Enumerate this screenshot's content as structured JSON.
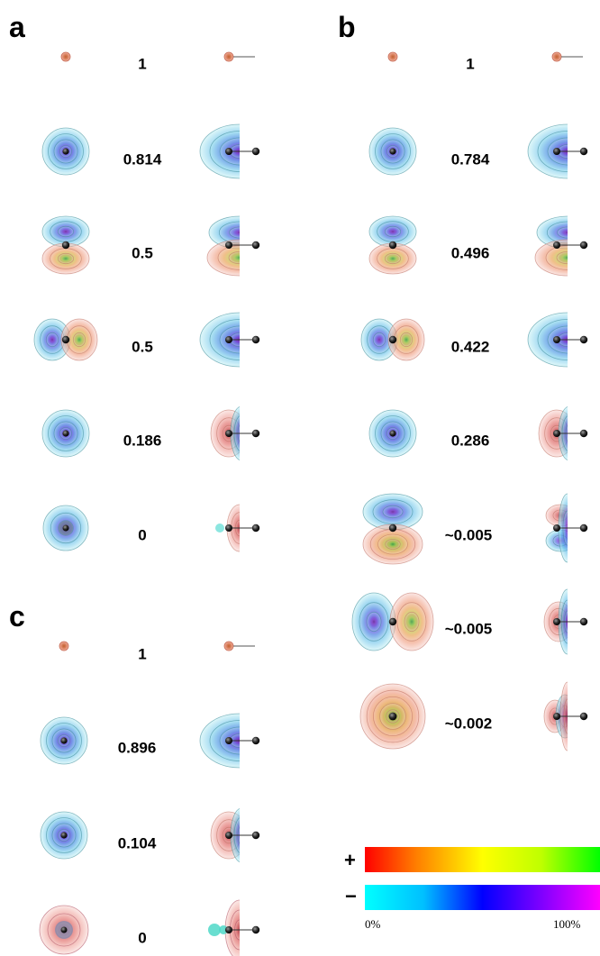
{
  "panels": [
    {
      "letter": "a",
      "values": [
        "1",
        "0.814",
        "0.5",
        "0.5",
        "0.186",
        "0"
      ],
      "orbitals": [
        "s-core",
        "s-diffuse",
        "p-vertical",
        "p-horizontal",
        "s-diffuse",
        "s-small"
      ]
    },
    {
      "letter": "b",
      "values": [
        "1",
        "0.784",
        "0.496",
        "0.422",
        "0.286",
        "~0.005",
        "~0.005",
        "~0.002"
      ],
      "orbitals": [
        "s-core",
        "s-diffuse",
        "p-vertical",
        "p-horizontal",
        "s-diffuse",
        "d-vertical",
        "d-horizontal",
        "s-large-positive"
      ]
    },
    {
      "letter": "c",
      "values": [
        "1",
        "0.896",
        "0.104",
        "0"
      ],
      "orbitals": [
        "s-core",
        "s-diffuse",
        "s-diffuse",
        "s-positive-ring"
      ]
    }
  ],
  "colorbar": {
    "plus_label": "+",
    "minus_label": "−",
    "min_label": "0%",
    "max_label": "100%",
    "positive_colors": [
      "#ff0000",
      "#ff7f00",
      "#ffff00",
      "#bfff00",
      "#00ff00"
    ],
    "negative_colors": [
      "#00ffff",
      "#00bfff",
      "#0000ff",
      "#7f00ff",
      "#ff00ff"
    ]
  },
  "colors": {
    "lobe_positive": "#e8908a",
    "lobe_negative": "#8fe3e8",
    "atom": "#333333"
  }
}
